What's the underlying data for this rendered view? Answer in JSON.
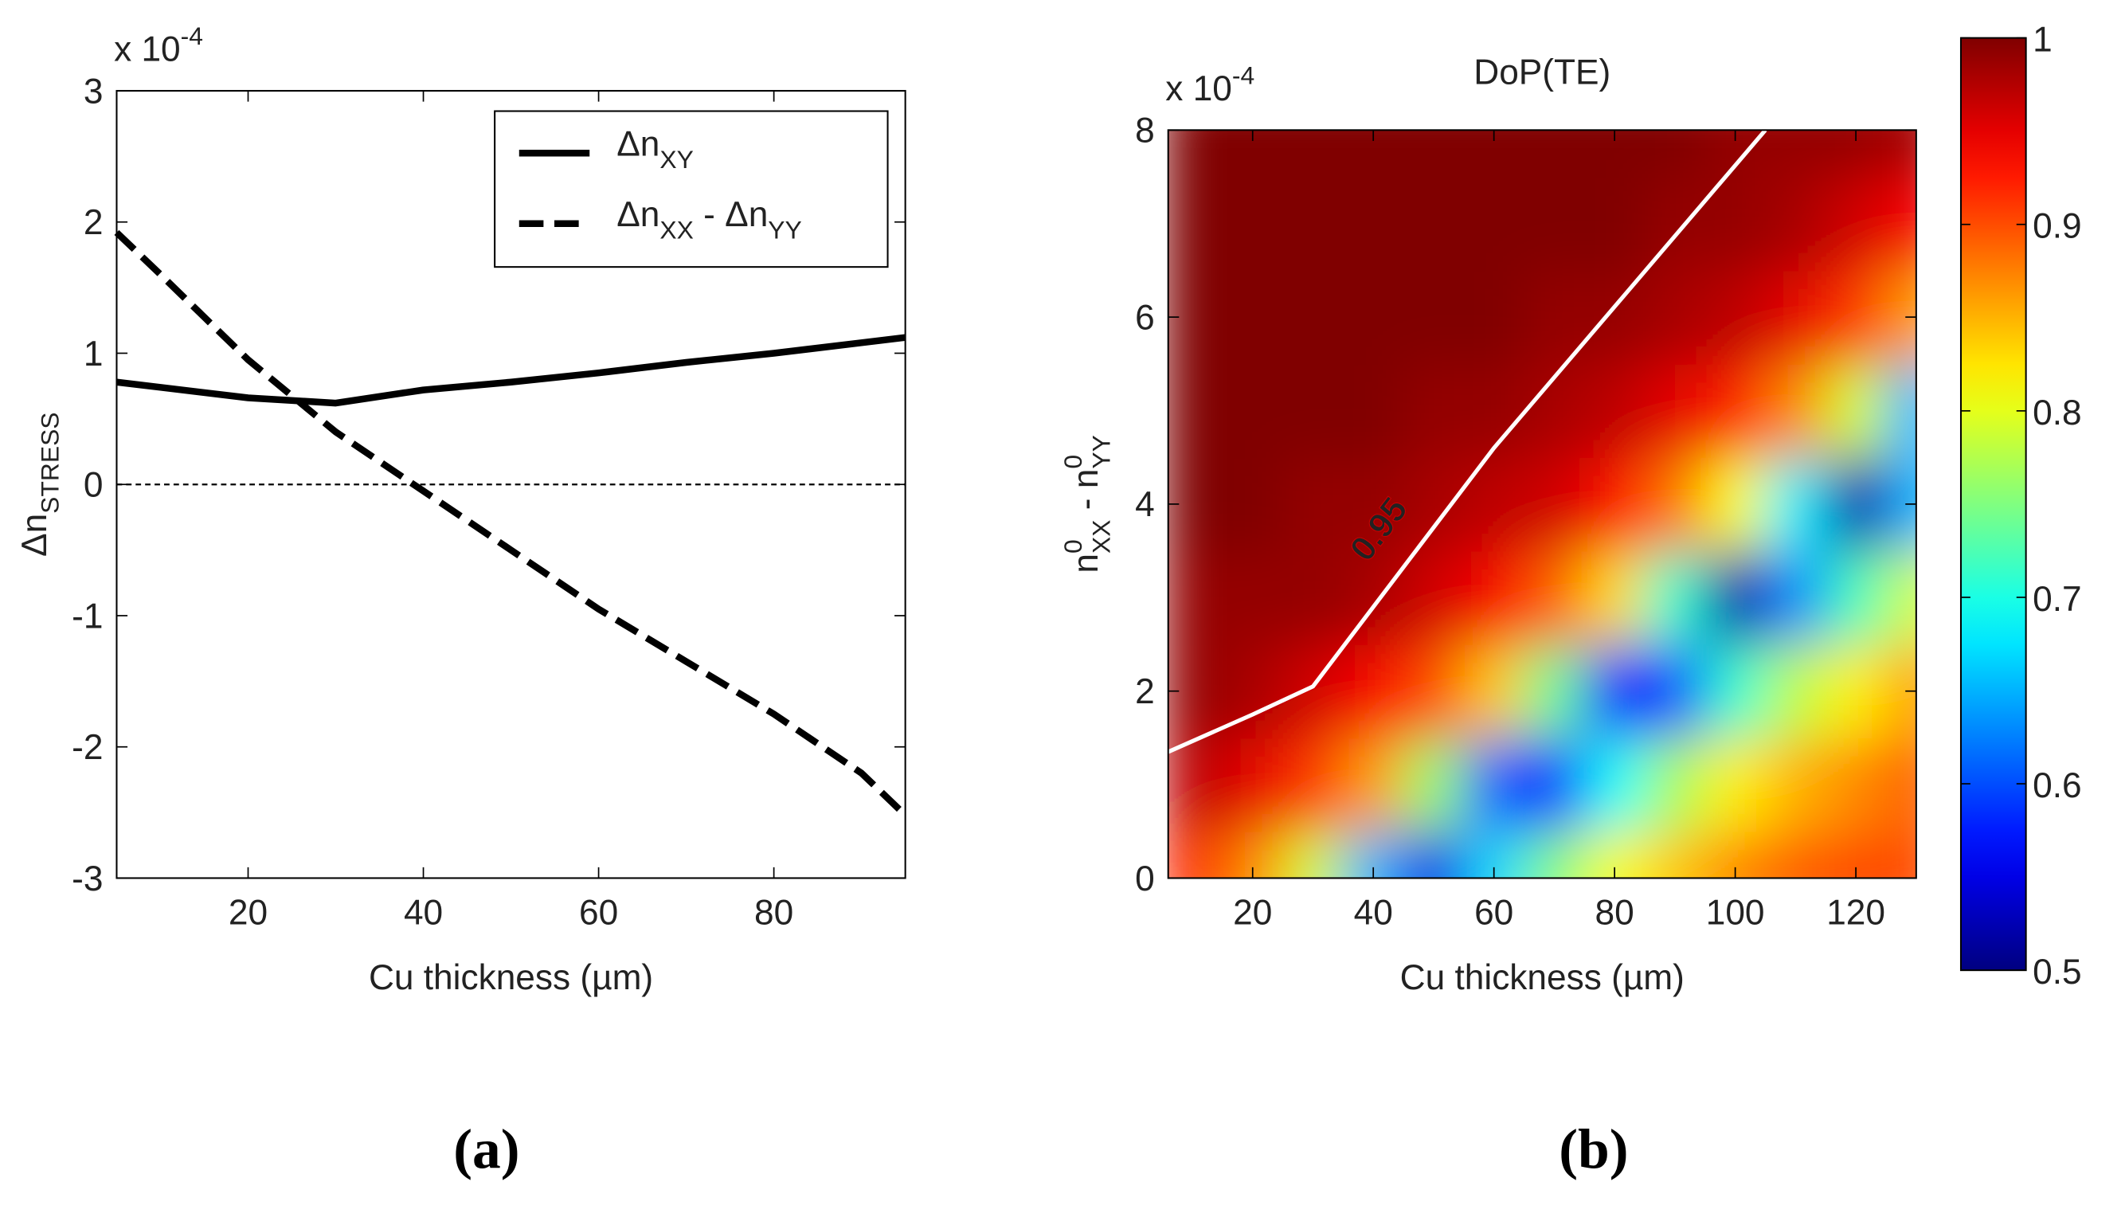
{
  "chart_data": [
    {
      "type": "line",
      "panel_label": "(a)",
      "offset_label": [
        {
          "text": "x 10"
        },
        {
          "text": "-4",
          "script": "sup"
        }
      ],
      "x_label": "Cu thickness (µm)",
      "y_label": [
        {
          "text": "Δn"
        },
        {
          "text": "STRESS",
          "script": "sub"
        }
      ],
      "x": [
        5,
        10,
        20,
        30,
        40,
        50,
        60,
        70,
        80,
        90,
        95
      ],
      "series": [
        {
          "name": [
            {
              "text": "Δn"
            },
            {
              "text": "XY",
              "script": "sub"
            }
          ],
          "color": "#000000",
          "linestyle": "solid",
          "values": [
            0.78,
            0.74,
            0.66,
            0.62,
            0.72,
            0.78,
            0.85,
            0.93,
            1.0,
            1.08,
            1.12
          ]
        },
        {
          "name": [
            {
              "text": "Δn"
            },
            {
              "text": "XX",
              "script": "sub"
            },
            {
              "text": " - Δn"
            },
            {
              "text": "YY",
              "script": "sub"
            }
          ],
          "color": "#000000",
          "linestyle": "dashed",
          "values": [
            1.92,
            1.6,
            0.95,
            0.4,
            -0.05,
            -0.5,
            -0.95,
            -1.35,
            -1.75,
            -2.2,
            -2.52
          ]
        }
      ],
      "reference_line": 0,
      "xlim": [
        5,
        95
      ],
      "xticks": [
        20,
        40,
        60,
        80
      ],
      "ylim": [
        -3,
        3
      ],
      "yticks": [
        -3,
        -2,
        -1,
        0,
        1,
        2,
        3
      ],
      "legend": "upper right",
      "grid": false
    },
    {
      "type": "heatmap",
      "panel_label": "(b)",
      "title": "DoP(TE)",
      "offset_label": [
        {
          "text": "x 10"
        },
        {
          "text": "-4",
          "script": "sup"
        }
      ],
      "x_label": "Cu thickness (µm)",
      "y_label": [
        {
          "text": "n"
        },
        {
          "text": "0",
          "script": "sup"
        },
        {
          "text": "XX",
          "script": "sub"
        },
        {
          "text": " - n"
        },
        {
          "text": "0",
          "script": "sup"
        },
        {
          "text": "YY",
          "script": "sub"
        }
      ],
      "x": [
        10,
        20,
        30,
        40,
        50,
        60,
        70,
        80,
        90,
        100,
        110,
        120,
        130
      ],
      "y": [
        0,
        1,
        2,
        3,
        4,
        5,
        6,
        7,
        8
      ],
      "z": [
        [
          0.92,
          0.87,
          0.79,
          0.65,
          0.55,
          0.67,
          0.75,
          0.81,
          0.84,
          0.87,
          0.89,
          0.9,
          0.9
        ],
        [
          0.97,
          0.95,
          0.91,
          0.86,
          0.76,
          0.61,
          0.58,
          0.69,
          0.77,
          0.82,
          0.85,
          0.87,
          0.89
        ],
        [
          0.99,
          0.98,
          0.96,
          0.94,
          0.9,
          0.84,
          0.74,
          0.57,
          0.6,
          0.71,
          0.78,
          0.82,
          0.86
        ],
        [
          0.99,
          0.99,
          0.99,
          0.98,
          0.96,
          0.94,
          0.89,
          0.83,
          0.71,
          0.52,
          0.63,
          0.72,
          0.79
        ],
        [
          1.0,
          1.0,
          0.99,
          0.99,
          0.98,
          0.97,
          0.96,
          0.93,
          0.88,
          0.81,
          0.68,
          0.52,
          0.65
        ],
        [
          1.0,
          1.0,
          1.0,
          1.0,
          0.99,
          0.99,
          0.98,
          0.97,
          0.95,
          0.92,
          0.87,
          0.79,
          0.65
        ],
        [
          1.0,
          1.0,
          1.0,
          1.0,
          1.0,
          1.0,
          0.99,
          0.99,
          0.98,
          0.97,
          0.95,
          0.91,
          0.86
        ],
        [
          1.0,
          1.0,
          1.0,
          1.0,
          1.0,
          1.0,
          1.0,
          1.0,
          0.99,
          0.99,
          0.98,
          0.96,
          0.94
        ],
        [
          1.0,
          1.0,
          1.0,
          1.0,
          1.0,
          1.0,
          1.0,
          1.0,
          1.0,
          0.99,
          0.99,
          0.99,
          0.98
        ]
      ],
      "contour": {
        "level": 0.95,
        "color": "#ffffff",
        "x": [
          6,
          20,
          30,
          60,
          105
        ],
        "y": [
          1.35,
          1.75,
          2.05,
          4.6,
          8
        ]
      },
      "colormap": "jet",
      "clim": [
        0.5,
        1
      ],
      "cticks": [
        0.5,
        0.6,
        0.7,
        0.8,
        0.9,
        1
      ],
      "xlim": [
        6,
        130
      ],
      "xticks": [
        20,
        40,
        60,
        80,
        100,
        120
      ],
      "ylim": [
        0,
        8
      ],
      "yticks": [
        0,
        2,
        4,
        6,
        8
      ]
    }
  ]
}
